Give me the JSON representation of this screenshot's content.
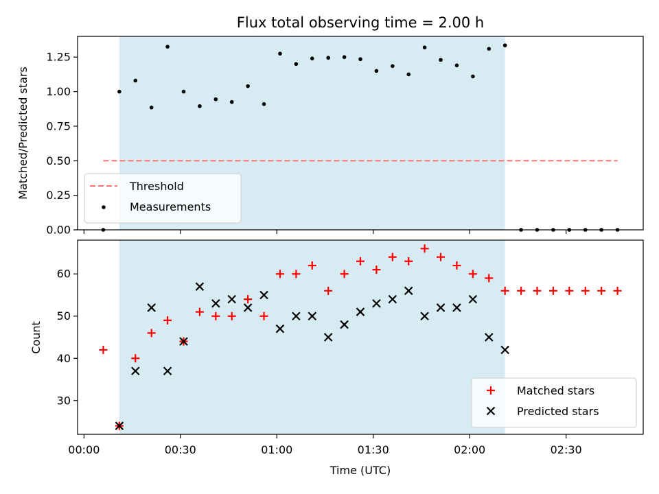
{
  "chart_data": [
    {
      "type": "scatter",
      "title": "Flux total observing time = 2.00 h",
      "xlabel": "",
      "ylabel": "Matched/Predicted stars",
      "xlim_minutes": [
        -2,
        174
      ],
      "ylim": [
        0,
        1.4
      ],
      "yticks": [
        0.0,
        0.25,
        0.5,
        0.75,
        1.0,
        1.25
      ],
      "ytick_labels": [
        "0.00",
        "0.25",
        "0.50",
        "0.75",
        "1.00",
        "1.25"
      ],
      "xticks": [
        "00:00",
        "00:30",
        "01:00",
        "01:30",
        "02:00",
        "02:30"
      ],
      "show_xtick_labels": false,
      "grid": false,
      "legend_position": "lower-left",
      "shaded_region": {
        "start": "00:11",
        "end": "02:11",
        "color": "#add8e6",
        "opacity": 0.5
      },
      "series": [
        {
          "name": "Threshold",
          "kind": "dashed-line",
          "color": "#ff7070",
          "x": [
            "00:06",
            "02:46"
          ],
          "y": [
            0.5,
            0.5
          ]
        },
        {
          "name": "Measurements",
          "kind": "dot",
          "color": "#000000",
          "x": [
            "00:06",
            "00:11",
            "00:16",
            "00:21",
            "00:26",
            "00:31",
            "00:36",
            "00:41",
            "00:46",
            "00:51",
            "00:56",
            "01:01",
            "01:06",
            "01:11",
            "01:16",
            "01:21",
            "01:26",
            "01:31",
            "01:36",
            "01:41",
            "01:46",
            "01:51",
            "01:56",
            "02:01",
            "02:06",
            "02:11",
            "02:16",
            "02:21",
            "02:26",
            "02:31",
            "02:36",
            "02:41",
            "02:46"
          ],
          "y": [
            0.0,
            1.0,
            1.08,
            0.885,
            1.325,
            1.0,
            0.895,
            0.945,
            0.925,
            1.04,
            0.91,
            1.275,
            1.2,
            1.24,
            1.245,
            1.25,
            1.235,
            1.15,
            1.185,
            1.125,
            1.32,
            1.23,
            1.19,
            1.11,
            1.31,
            1.335,
            0.0,
            0.0,
            0.0,
            0.0,
            0.0,
            0.0,
            0.0
          ]
        }
      ]
    },
    {
      "type": "scatter",
      "title": "",
      "xlabel": "Time (UTC)",
      "ylabel": "Count",
      "xlim_minutes": [
        -2,
        174
      ],
      "ylim": [
        22,
        68
      ],
      "yticks": [
        30,
        40,
        50,
        60
      ],
      "ytick_labels": [
        "30",
        "40",
        "50",
        "60"
      ],
      "xticks": [
        "00:00",
        "00:30",
        "01:00",
        "01:30",
        "02:00",
        "02:30"
      ],
      "show_xtick_labels": true,
      "grid": false,
      "legend_position": "lower-right",
      "shaded_region": {
        "start": "00:11",
        "end": "02:11",
        "color": "#add8e6",
        "opacity": 0.5
      },
      "series": [
        {
          "name": "Matched stars",
          "kind": "plus",
          "color": "#ff0000",
          "x": [
            "00:06",
            "00:11",
            "00:16",
            "00:21",
            "00:26",
            "00:31",
            "00:36",
            "00:41",
            "00:46",
            "00:51",
            "00:56",
            "01:01",
            "01:06",
            "01:11",
            "01:16",
            "01:21",
            "01:26",
            "01:31",
            "01:36",
            "01:41",
            "01:46",
            "01:51",
            "01:56",
            "02:01",
            "02:06",
            "02:11",
            "02:16",
            "02:21",
            "02:26",
            "02:31",
            "02:36",
            "02:41",
            "02:46"
          ],
          "y": [
            42,
            24,
            40,
            46,
            49,
            44,
            51,
            50,
            50,
            54,
            50,
            60,
            60,
            62,
            56,
            60,
            63,
            61,
            64,
            63,
            66,
            64,
            62,
            60,
            59,
            56,
            56,
            56,
            56,
            56,
            56,
            56,
            56
          ]
        },
        {
          "name": "Predicted stars",
          "kind": "x",
          "color": "#000000",
          "x": [
            "00:11",
            "00:16",
            "00:21",
            "00:26",
            "00:31",
            "00:36",
            "00:41",
            "00:46",
            "00:51",
            "00:56",
            "01:01",
            "01:06",
            "01:11",
            "01:16",
            "01:21",
            "01:26",
            "01:31",
            "01:36",
            "01:41",
            "01:46",
            "01:51",
            "01:56",
            "02:01",
            "02:06",
            "02:11"
          ],
          "y": [
            24,
            37,
            52,
            37,
            44,
            57,
            53,
            54,
            52,
            55,
            47,
            50,
            50,
            45,
            48,
            51,
            53,
            54,
            56,
            50,
            52,
            52,
            54,
            45,
            42
          ]
        }
      ]
    }
  ]
}
